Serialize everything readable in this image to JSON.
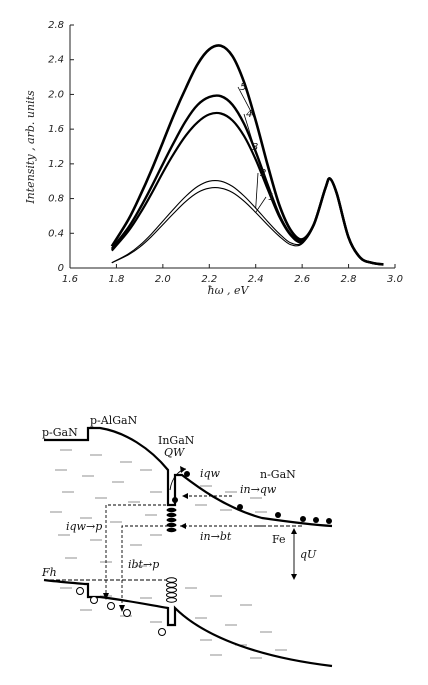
{
  "chart_data": {
    "type": "line",
    "xlabel": "ħω , eV",
    "ylabel": "Intensity , arb. units",
    "xlim": [
      1.6,
      3.0
    ],
    "ylim": [
      0,
      2.8
    ],
    "x_ticks": [
      "1.6",
      "1.8",
      "2.0",
      "2.2",
      "2.4",
      "2.6",
      "2.8",
      "3.0"
    ],
    "y_ticks": [
      "0",
      "0.4",
      "0.8",
      "1.2",
      "1.6",
      "2.0",
      "2.4",
      "2.8"
    ],
    "grid": false,
    "legend": "none",
    "x": [
      1.78,
      1.85,
      1.9,
      1.95,
      2.0,
      2.05,
      2.1,
      2.15,
      2.2,
      2.25,
      2.3,
      2.35,
      2.4,
      2.45,
      2.5,
      2.55,
      2.6,
      2.65,
      2.7,
      2.72,
      2.75,
      2.8,
      2.85,
      2.9,
      2.95
    ],
    "series": [
      {
        "name": "1",
        "values": [
          0.06,
          0.15,
          0.24,
          0.36,
          0.5,
          0.64,
          0.77,
          0.87,
          0.92,
          0.92,
          0.87,
          0.77,
          0.64,
          0.5,
          0.37,
          0.27,
          0.28,
          0.5,
          0.92,
          1.03,
          0.85,
          0.35,
          0.12,
          0.06,
          0.04
        ]
      },
      {
        "name": "2",
        "values": [
          0.06,
          0.16,
          0.26,
          0.39,
          0.54,
          0.69,
          0.83,
          0.94,
          1.0,
          1.0,
          0.94,
          0.83,
          0.69,
          0.54,
          0.4,
          0.29,
          0.29,
          0.5,
          0.92,
          1.03,
          0.85,
          0.35,
          0.12,
          0.06,
          0.04
        ]
      },
      {
        "name": "3",
        "values": [
          0.2,
          0.42,
          0.62,
          0.85,
          1.1,
          1.33,
          1.53,
          1.68,
          1.77,
          1.78,
          1.7,
          1.52,
          1.25,
          0.92,
          0.6,
          0.38,
          0.3,
          0.5,
          0.92,
          1.03,
          0.85,
          0.35,
          0.12,
          0.06,
          0.04
        ]
      },
      {
        "name": "4",
        "values": [
          0.22,
          0.46,
          0.68,
          0.93,
          1.2,
          1.46,
          1.7,
          1.88,
          1.97,
          1.98,
          1.88,
          1.66,
          1.34,
          0.97,
          0.62,
          0.39,
          0.31,
          0.5,
          0.92,
          1.03,
          0.85,
          0.35,
          0.12,
          0.06,
          0.04
        ]
      },
      {
        "name": "5",
        "values": [
          0.25,
          0.55,
          0.82,
          1.12,
          1.45,
          1.78,
          2.08,
          2.35,
          2.52,
          2.56,
          2.44,
          2.14,
          1.7,
          1.2,
          0.74,
          0.44,
          0.33,
          0.5,
          0.92,
          1.03,
          0.85,
          0.35,
          0.12,
          0.06,
          0.04
        ]
      }
    ]
  },
  "diagram": {
    "labels": {
      "p_gan": "p-GaN",
      "p_algan": "p-AlGaN",
      "ingan": "InGaN",
      "qw": "QW",
      "n_gan": "n-GaN",
      "i_qw": "iqw",
      "i_n_qw": "in→qw",
      "i_qw_p": "iqw→p",
      "i_n_bt": "in→bt",
      "i_bt_p": "ibt→p",
      "f_e": "Fe",
      "f_h": "Fh",
      "qu": "qU"
    }
  }
}
